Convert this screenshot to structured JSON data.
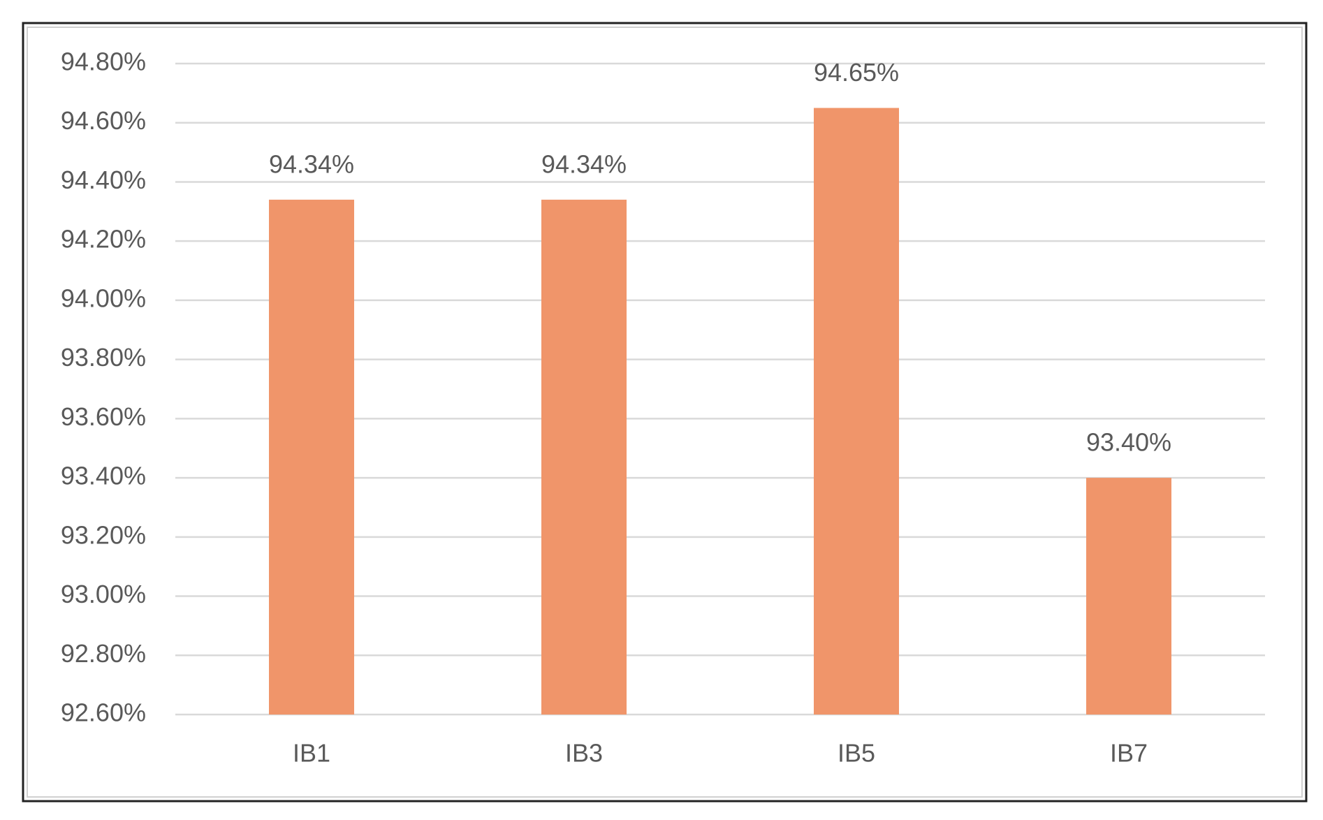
{
  "chart_data": {
    "type": "bar",
    "categories": [
      "IB1",
      "IB3",
      "IB5",
      "IB7"
    ],
    "values": [
      94.34,
      94.34,
      94.65,
      93.4
    ],
    "value_labels": [
      "94.34%",
      "94.34%",
      "94.65%",
      "93.40%"
    ],
    "color": "#f0956a",
    "ylim": [
      92.6,
      94.8
    ],
    "yticks": [
      {
        "value": 92.6,
        "label": "92.60%"
      },
      {
        "value": 92.8,
        "label": "92.80%"
      },
      {
        "value": 93.0,
        "label": "93.00%"
      },
      {
        "value": 93.2,
        "label": "93.20%"
      },
      {
        "value": 93.4,
        "label": "93.40%"
      },
      {
        "value": 93.6,
        "label": "93.60%"
      },
      {
        "value": 93.8,
        "label": "93.80%"
      },
      {
        "value": 94.0,
        "label": "94.00%"
      },
      {
        "value": 94.2,
        "label": "94.20%"
      },
      {
        "value": 94.4,
        "label": "94.40%"
      },
      {
        "value": 94.6,
        "label": "94.60%"
      },
      {
        "value": 94.8,
        "label": "94.80%"
      }
    ],
    "grid": true
  }
}
